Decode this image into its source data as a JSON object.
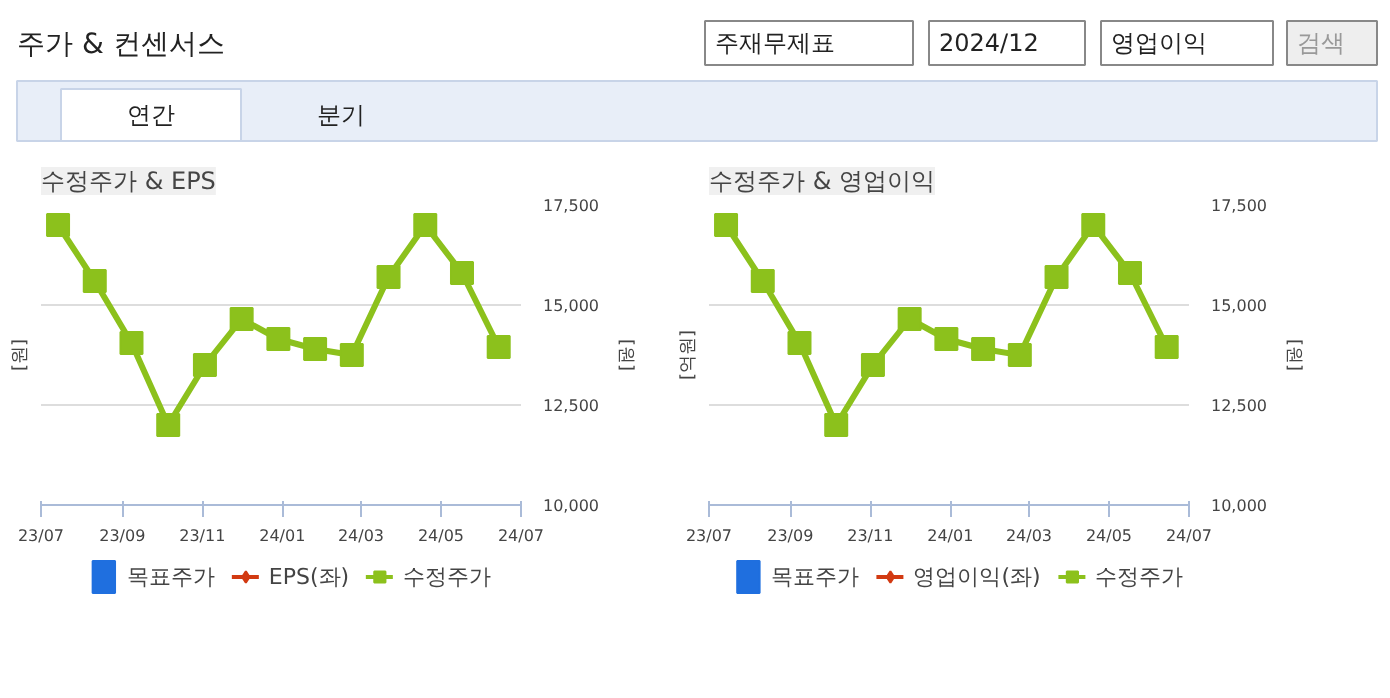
{
  "chart_data": [
    {
      "type": "other",
      "title": "주가 & 컨센서스",
      "annotations": [
        "주재무제표",
        "2024/12",
        "영업이익",
        "검색",
        "연간",
        "분기"
      ]
    },
    {
      "type": "line",
      "title": "수정주가 & EPS",
      "ylabel": "[원]",
      "y2label": "[원]",
      "x": [
        "2023-07-14",
        "2023-08-11",
        "2023-09-08",
        "2023-10-06",
        "2023-11-03",
        "2023-12-01",
        "2023-12-29",
        "2024-01-26",
        "2024-02-23",
        "2024-03-22",
        "2024-04-19",
        "2024-05-17",
        "2024-06-14"
      ],
      "xlim": [
        "2023-07-01",
        "2024-07-01"
      ],
      "xticks": [
        {
          "value": "2023-07-01",
          "label": "23/07"
        },
        {
          "value": "2023-09-01",
          "label": "23/09"
        },
        {
          "value": "2023-11-01",
          "label": "23/11"
        },
        {
          "value": "2024-01-01",
          "label": "24/01"
        },
        {
          "value": "2024-03-01",
          "label": "24/03"
        },
        {
          "value": "2024-05-01",
          "label": "24/05"
        },
        {
          "value": "2024-07-01",
          "label": "24/07"
        }
      ],
      "y2lim": [
        10000,
        17500
      ],
      "y2ticks": [
        {
          "value": 10000,
          "label": "10,000"
        },
        {
          "value": 12500,
          "label": "12,500"
        },
        {
          "value": 15000,
          "label": "15,000"
        },
        {
          "value": 17500,
          "label": "17,500"
        }
      ],
      "grid": "y",
      "legend": "bottom",
      "series": [
        {
          "name": "목표주가",
          "type": "bar",
          "color": "#1f6fdf",
          "axis": "y2",
          "values": [
            null,
            null,
            null,
            null,
            null,
            null,
            null,
            null,
            null,
            null,
            null,
            null,
            null
          ]
        },
        {
          "name": "EPS(좌)",
          "type": "line",
          "marker": "diamond",
          "color": "#d23a12",
          "values": [
            null,
            null,
            null,
            null,
            null,
            null,
            null,
            null,
            null,
            null,
            null,
            null,
            null
          ]
        },
        {
          "name": "수정주가",
          "type": "line",
          "marker": "square",
          "color": "#8cc11c",
          "axis": "y2",
          "values": [
            17000,
            15600,
            14050,
            12000,
            13500,
            14650,
            14150,
            13900,
            13750,
            15700,
            17000,
            15800,
            13950
          ]
        }
      ]
    },
    {
      "type": "line",
      "title": "수정주가 & 영업이익",
      "ylabel": "[억원]",
      "y2label": "[원]",
      "x": [
        "2023-07-14",
        "2023-08-11",
        "2023-09-08",
        "2023-10-06",
        "2023-11-03",
        "2023-12-01",
        "2023-12-29",
        "2024-01-26",
        "2024-02-23",
        "2024-03-22",
        "2024-04-19",
        "2024-05-17",
        "2024-06-14"
      ],
      "xlim": [
        "2023-07-01",
        "2024-07-01"
      ],
      "xticks": [
        {
          "value": "2023-07-01",
          "label": "23/07"
        },
        {
          "value": "2023-09-01",
          "label": "23/09"
        },
        {
          "value": "2023-11-01",
          "label": "23/11"
        },
        {
          "value": "2024-01-01",
          "label": "24/01"
        },
        {
          "value": "2024-03-01",
          "label": "24/03"
        },
        {
          "value": "2024-05-01",
          "label": "24/05"
        },
        {
          "value": "2024-07-01",
          "label": "24/07"
        }
      ],
      "y2lim": [
        10000,
        17500
      ],
      "y2ticks": [
        {
          "value": 10000,
          "label": "10,000"
        },
        {
          "value": 12500,
          "label": "12,500"
        },
        {
          "value": 15000,
          "label": "15,000"
        },
        {
          "value": 17500,
          "label": "17,500"
        }
      ],
      "grid": "y",
      "legend": "bottom",
      "series": [
        {
          "name": "목표주가",
          "type": "bar",
          "color": "#1f6fdf",
          "axis": "y2",
          "values": [
            null,
            null,
            null,
            null,
            null,
            null,
            null,
            null,
            null,
            null,
            null,
            null,
            null
          ]
        },
        {
          "name": "영업이익(좌)",
          "type": "line",
          "marker": "diamond",
          "color": "#d23a12",
          "values": [
            null,
            null,
            null,
            null,
            null,
            null,
            null,
            null,
            null,
            null,
            null,
            null,
            null
          ]
        },
        {
          "name": "수정주가",
          "type": "line",
          "marker": "square",
          "color": "#8cc11c",
          "axis": "y2",
          "values": [
            17000,
            15600,
            14050,
            12000,
            13500,
            14650,
            14150,
            13900,
            13750,
            15700,
            17000,
            15800,
            13950
          ]
        }
      ]
    }
  ]
}
